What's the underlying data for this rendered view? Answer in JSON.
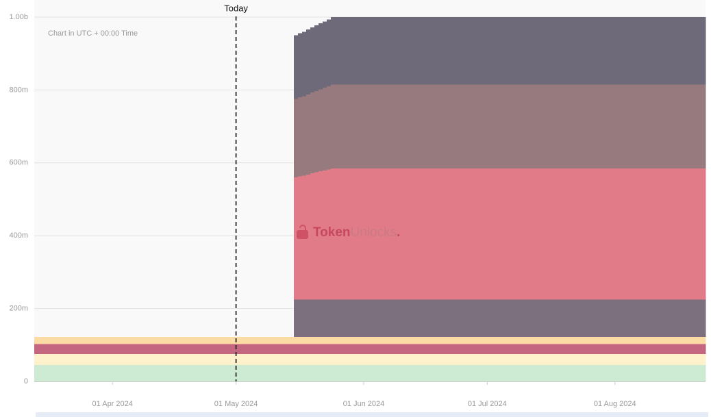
{
  "chart_data": {
    "type": "stacked-step-area",
    "note": "Chart in UTC + 00:00 Time",
    "watermark": {
      "brand": "Token",
      "rest": "Unlocks",
      "dot": "."
    },
    "today": {
      "x": "2024-05-01",
      "label": "Today"
    },
    "x": [
      "2024-03-13",
      "2024-05-15",
      "2024-05-16",
      "2024-05-17",
      "2024-05-18",
      "2024-05-19",
      "2024-05-20",
      "2024-05-21",
      "2024-05-22",
      "2024-05-23",
      "2024-05-24"
    ],
    "xlim": [
      "2024-03-13",
      "2024-08-23"
    ],
    "xticks": [
      {
        "value": "2024-04-01",
        "label": "01 Apr 2024"
      },
      {
        "value": "2024-05-01",
        "label": "01 May 2024"
      },
      {
        "value": "2024-06-01",
        "label": "01 Jun 2024"
      },
      {
        "value": "2024-07-01",
        "label": "01 Jul 2024"
      },
      {
        "value": "2024-08-01",
        "label": "01 Aug 2024"
      }
    ],
    "ylim": [
      0,
      1000
    ],
    "yticks": [
      0,
      {
        "value": 200,
        "label": "200m"
      },
      {
        "value": 400,
        "label": "400m"
      },
      {
        "value": 600,
        "label": "600m"
      },
      {
        "value": 800,
        "label": "800m"
      },
      {
        "value": 1000,
        "label": "1.00b"
      }
    ],
    "grid": true,
    "series": [
      {
        "color": "#cdebd3",
        "values": [
          45,
          45,
          45,
          45,
          45,
          45,
          45,
          45,
          45,
          45,
          45
        ]
      },
      {
        "color": "#fdf2cc",
        "values": [
          30,
          30,
          30,
          30,
          30,
          30,
          30,
          30,
          30,
          30,
          30
        ]
      },
      {
        "color": "#c4667f",
        "values": [
          27,
          27,
          27,
          27,
          27,
          27,
          27,
          27,
          27,
          27,
          27
        ]
      },
      {
        "color": "#fcdca5",
        "values": [
          20,
          20,
          20,
          20,
          20,
          20,
          20,
          20,
          20,
          20,
          20
        ]
      },
      {
        "color": "#7d707e",
        "values": [
          0,
          103,
          103,
          103,
          103,
          103,
          103,
          103,
          103,
          103,
          103
        ]
      },
      {
        "color": "#e27b88",
        "values": [
          0,
          335,
          338,
          340,
          343,
          346,
          349,
          352,
          354,
          357,
          360
        ]
      },
      {
        "color": "#967a7d",
        "values": [
          0,
          215,
          217,
          218,
          220,
          222,
          223,
          225,
          227,
          228,
          230
        ]
      },
      {
        "color": "#6f6a79",
        "values": [
          0,
          175,
          176,
          177,
          178,
          179,
          180,
          181,
          182,
          183,
          185
        ]
      }
    ]
  }
}
